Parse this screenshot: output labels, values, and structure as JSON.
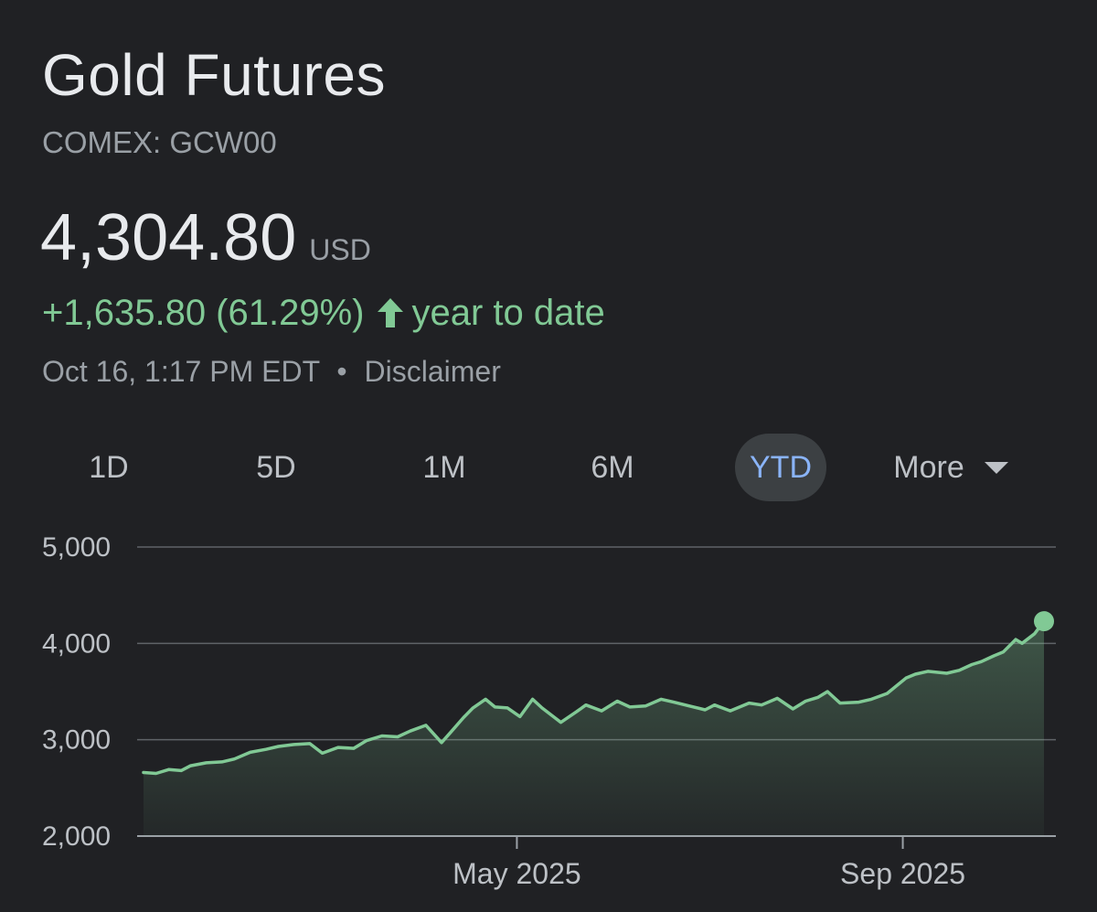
{
  "header": {
    "title": "Gold Futures",
    "ticker": "COMEX: GCW00"
  },
  "quote": {
    "price": "4,304.80",
    "currency": "USD",
    "change": "+1,635.80 (61.29%)",
    "change_icon": "arrow-up-icon",
    "change_period": "year to date",
    "timestamp": "Oct 16, 1:17 PM EDT",
    "separator": "•",
    "disclaimer": "Disclaimer"
  },
  "range_tabs": {
    "items": [
      {
        "label": "1D"
      },
      {
        "label": "5D"
      },
      {
        "label": "1M"
      },
      {
        "label": "6M"
      },
      {
        "label": "YTD",
        "active": true
      },
      {
        "label": "More",
        "icon": "caret-down-icon"
      }
    ]
  },
  "colors": {
    "background": "#202124",
    "line": "#81c995",
    "active_tab_text": "#8ab4f8",
    "active_tab_bg": "#3c4043"
  },
  "chart_data": {
    "type": "area",
    "title": "",
    "xlabel": "",
    "ylabel": "",
    "ylim": [
      2000,
      5000
    ],
    "yticks": [
      2000,
      3000,
      4000,
      5000
    ],
    "ytick_labels": [
      "2,000",
      "3,000",
      "4,000",
      "5,000"
    ],
    "xticks": [
      {
        "date": "2025-05-01",
        "label": "May 2025"
      },
      {
        "date": "2025-09-01",
        "label": "Sep 2025"
      }
    ],
    "grid": "horizontal",
    "series": [
      {
        "points": [
          [
            "2025-01-02",
            2660
          ],
          [
            "2025-01-06",
            2650
          ],
          [
            "2025-01-10",
            2690
          ],
          [
            "2025-01-14",
            2680
          ],
          [
            "2025-01-17",
            2730
          ],
          [
            "2025-01-22",
            2760
          ],
          [
            "2025-01-27",
            2770
          ],
          [
            "2025-01-31",
            2800
          ],
          [
            "2025-02-05",
            2870
          ],
          [
            "2025-02-10",
            2900
          ],
          [
            "2025-02-14",
            2930
          ],
          [
            "2025-02-19",
            2950
          ],
          [
            "2025-02-24",
            2960
          ],
          [
            "2025-02-28",
            2860
          ],
          [
            "2025-03-05",
            2920
          ],
          [
            "2025-03-10",
            2910
          ],
          [
            "2025-03-14",
            2990
          ],
          [
            "2025-03-19",
            3040
          ],
          [
            "2025-03-24",
            3030
          ],
          [
            "2025-03-28",
            3090
          ],
          [
            "2025-04-02",
            3150
          ],
          [
            "2025-04-07",
            2970
          ],
          [
            "2025-04-10",
            3080
          ],
          [
            "2025-04-14",
            3230
          ],
          [
            "2025-04-17",
            3330
          ],
          [
            "2025-04-21",
            3420
          ],
          [
            "2025-04-24",
            3340
          ],
          [
            "2025-04-28",
            3330
          ],
          [
            "2025-05-02",
            3240
          ],
          [
            "2025-05-06",
            3420
          ],
          [
            "2025-05-09",
            3330
          ],
          [
            "2025-05-13",
            3230
          ],
          [
            "2025-05-15",
            3180
          ],
          [
            "2025-05-20",
            3290
          ],
          [
            "2025-05-23",
            3360
          ],
          [
            "2025-05-28",
            3300
          ],
          [
            "2025-06-02",
            3400
          ],
          [
            "2025-06-06",
            3340
          ],
          [
            "2025-06-11",
            3350
          ],
          [
            "2025-06-16",
            3420
          ],
          [
            "2025-06-20",
            3390
          ],
          [
            "2025-06-25",
            3350
          ],
          [
            "2025-06-30",
            3310
          ],
          [
            "2025-07-03",
            3360
          ],
          [
            "2025-07-08",
            3300
          ],
          [
            "2025-07-14",
            3380
          ],
          [
            "2025-07-18",
            3360
          ],
          [
            "2025-07-23",
            3430
          ],
          [
            "2025-07-28",
            3320
          ],
          [
            "2025-08-01",
            3400
          ],
          [
            "2025-08-05",
            3440
          ],
          [
            "2025-08-08",
            3500
          ],
          [
            "2025-08-12",
            3380
          ],
          [
            "2025-08-18",
            3390
          ],
          [
            "2025-08-22",
            3420
          ],
          [
            "2025-08-27",
            3480
          ],
          [
            "2025-09-02",
            3640
          ],
          [
            "2025-09-05",
            3680
          ],
          [
            "2025-09-09",
            3710
          ],
          [
            "2025-09-15",
            3690
          ],
          [
            "2025-09-19",
            3720
          ],
          [
            "2025-09-23",
            3780
          ],
          [
            "2025-09-26",
            3810
          ],
          [
            "2025-09-30",
            3870
          ],
          [
            "2025-10-03",
            3910
          ],
          [
            "2025-10-07",
            4040
          ],
          [
            "2025-10-09",
            4000
          ],
          [
            "2025-10-13",
            4100
          ],
          [
            "2025-10-16",
            4230
          ]
        ]
      }
    ]
  }
}
